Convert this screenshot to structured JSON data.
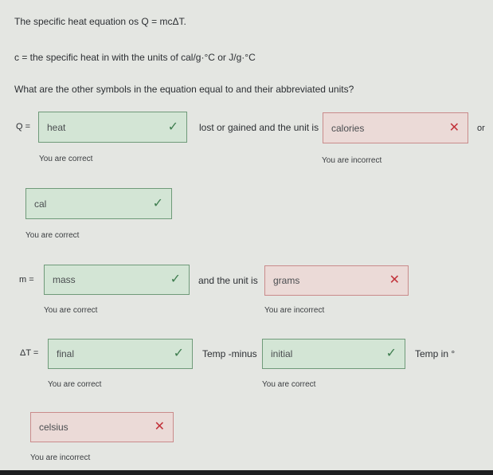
{
  "intro": {
    "equation_line": "The specific heat equation os Q = mcΔT.",
    "c_line": "c = the specific heat in with the units of cal/g·°C or J/g·°C",
    "question": "What are the other symbols in the equation equal to and their abbreviated units?"
  },
  "rows": {
    "q": {
      "label": "Q =",
      "answer1": "heat",
      "answer1_status": "correct",
      "feedback1": "You are correct",
      "middle": "lost or gained and the unit is",
      "answer2": "calories",
      "answer2_status": "incorrect",
      "feedback2": "You are incorrect",
      "trailing": "or",
      "answer3": "cal",
      "answer3_status": "correct",
      "feedback3": "You are correct"
    },
    "m": {
      "label": "m =",
      "answer1": "mass",
      "answer1_status": "correct",
      "feedback1": "You are correct",
      "middle": "and the unit is",
      "answer2": "grams",
      "answer2_status": "incorrect",
      "feedback2": "You are incorrect"
    },
    "dt": {
      "label": "ΔT =",
      "answer1": "final",
      "answer1_status": "correct",
      "feedback1": "You are correct",
      "middle": "Temp -minus",
      "answer2": "initial",
      "answer2_status": "correct",
      "feedback2": "You are correct",
      "trailing": "Temp in °",
      "answer3": "celsius",
      "answer3_status": "incorrect",
      "feedback3": "You are incorrect"
    }
  },
  "icons": {
    "correct": "✓",
    "incorrect": "✕"
  },
  "colors": {
    "correct_bg": "#d3e5d5",
    "correct_border": "#6f9a79",
    "incorrect_bg": "#ebdad7",
    "incorrect_border": "#c98b8b",
    "check": "#3f7d4f",
    "cross": "#c2323a"
  }
}
